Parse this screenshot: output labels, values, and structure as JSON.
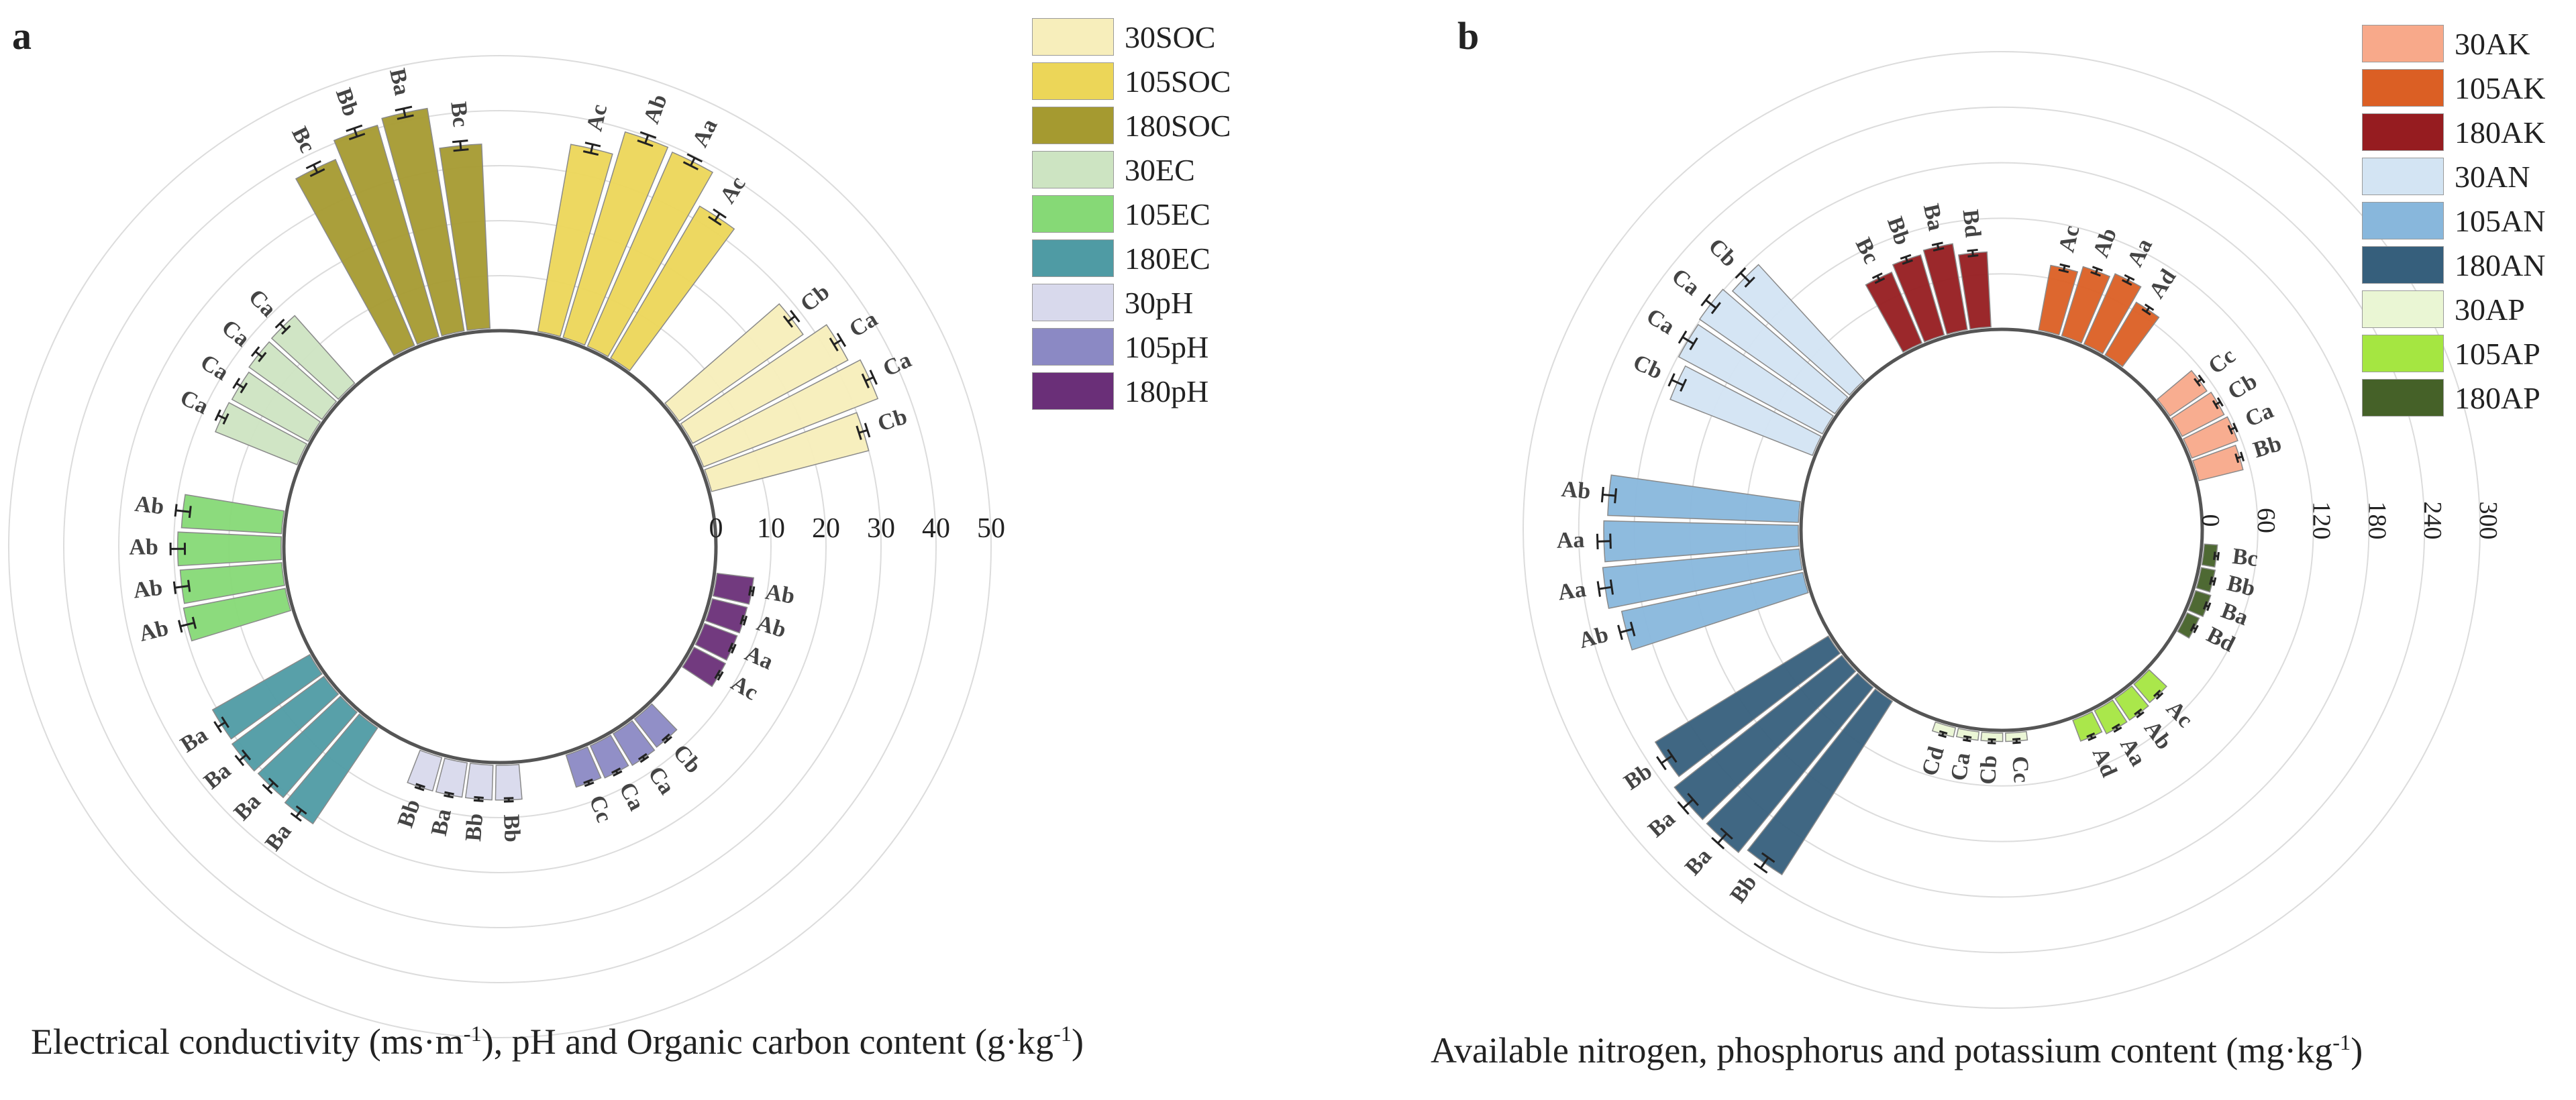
{
  "panels": [
    {
      "letter": "a",
      "caption": {
        "text": "Electrical conductivity (ms·m",
        "sup1": "-1",
        "mid": "), pH and Organic carbon content (g·kg",
        "sup2": "-1",
        "end": ")"
      }
    },
    {
      "letter": "b",
      "caption": {
        "text": "Available nitrogen, phosphorus and potassium content (mg·kg",
        "sup1": "-1",
        "end": ")"
      }
    }
  ],
  "colors": {
    "30SOC": "#f7eebb",
    "105SOC": "#ecd658",
    "180SOC": "#a59a30",
    "30EC": "#cde4c2",
    "105EC": "#86d976",
    "180EC": "#4f9ba4",
    "30pH": "#d8d9ec",
    "105pH": "#8b89c4",
    "180pH": "#6a2f78",
    "30AK": "#f8a98a",
    "105AK": "#db5f24",
    "180AK": "#961c20",
    "30AN": "#d3e4f3",
    "105AN": "#88b7dc",
    "180AN": "#365f7c",
    "30AP": "#eaf6d4",
    "105AP": "#a5e641",
    "180AP": "#456128"
  },
  "chart_data": [
    {
      "type": "radial-bar",
      "panel": "a",
      "title": "",
      "axis_label": "Electrical conductivity (ms·m-1), pH and Organic carbon content (g·kg-1)",
      "rlim": [
        0,
        50
      ],
      "ticks": [
        0,
        10,
        20,
        30,
        40,
        50
      ],
      "grid": true,
      "legend": [
        "30SOC",
        "105SOC",
        "180SOC",
        "30EC",
        "105EC",
        "180EC",
        "30pH",
        "105pH",
        "180pH"
      ],
      "groups": [
        {
          "series": "180pH",
          "values": [
            7.2,
            7.0,
            6.8,
            6.9
          ],
          "errors": [
            0.3,
            0.3,
            0.3,
            0.3
          ],
          "labels": [
            "Ab",
            "Ab",
            "Aa",
            "Ac"
          ]
        },
        {
          "series": "105pH",
          "values": [
            7.0,
            7.2,
            6.9,
            6.6
          ],
          "errors": [
            0.3,
            0.3,
            0.3,
            0.3
          ],
          "labels": [
            "Cb",
            "Ca",
            "Ca",
            "Cc"
          ]
        },
        {
          "series": "30pH",
          "values": [
            6.8,
            6.8,
            6.8,
            6.8
          ],
          "errors": [
            0.3,
            0.3,
            0.3,
            0.3
          ],
          "labels": [
            "Bb",
            "Bb",
            "Ba",
            "Bb"
          ]
        },
        {
          "series": "180EC",
          "values": [
            21.5,
            21.0,
            21.2,
            20.8
          ],
          "errors": [
            0.8,
            0.8,
            0.8,
            0.8
          ],
          "labels": [
            "Ba",
            "Ba",
            "Ba",
            "Ba"
          ]
        },
        {
          "series": "105EC",
          "values": [
            19.3,
            19.0,
            19.3,
            18.7
          ],
          "errors": [
            1.3,
            1.3,
            1.3,
            1.3
          ],
          "labels": [
            "Ab",
            "Ab",
            "Ab",
            "Ab"
          ]
        },
        {
          "series": "30EC",
          "values": [
            16.5,
            16.3,
            16.8,
            16.9
          ],
          "errors": [
            0.8,
            0.8,
            0.8,
            0.8
          ],
          "labels": [
            "Ca",
            "Ca",
            "Ca",
            "Ca"
          ]
        },
        {
          "series": "180SOC",
          "values": [
            37.2,
            40.5,
            41.5,
            34.0
          ],
          "errors": [
            0.8,
            0.8,
            0.8,
            0.8
          ],
          "labels": [
            "Bc",
            "Bb",
            "Ba",
            "Bc"
          ]
        },
        {
          "series": "105SOC",
          "values": [
            35.0,
            39.5,
            39.0,
            32.5
          ],
          "errors": [
            0.8,
            0.8,
            0.8,
            0.8
          ],
          "labels": [
            "Ac",
            "Ab",
            "Aa",
            "Ac"
          ]
        },
        {
          "series": "30SOC",
          "values": [
            28.0,
            32.5,
            34.5,
            30.0
          ],
          "errors": [
            0.8,
            0.8,
            0.8,
            0.8
          ],
          "labels": [
            "Cb",
            "Ca",
            "Ca",
            "Cb"
          ]
        }
      ]
    },
    {
      "type": "radial-bar",
      "panel": "b",
      "title": "",
      "axis_label": "Available nitrogen, phosphorus and potassium content (mg·kg-1)",
      "rlim": [
        0,
        300
      ],
      "ticks": [
        0,
        60,
        120,
        180,
        240,
        300
      ],
      "grid": true,
      "legend": [
        "30AK",
        "105AK",
        "180AK",
        "30AN",
        "105AN",
        "180AN",
        "30AP",
        "105AP",
        "180AP"
      ],
      "groups": [
        {
          "series": "180AP",
          "values": [
            17,
            18,
            20,
            17
          ],
          "errors": [
            2,
            2,
            2,
            2
          ],
          "labels": [
            "Bc",
            "Bb",
            "Ba",
            "Bd"
          ]
        },
        {
          "series": "105AP",
          "values": [
            29,
            31,
            31,
            27
          ],
          "errors": [
            2,
            2,
            2,
            2
          ],
          "labels": [
            "Ac",
            "Ab",
            "Aa",
            "Ad"
          ]
        },
        {
          "series": "30AP",
          "values": [
            12,
            12,
            12,
            13
          ],
          "errors": [
            2,
            2,
            2,
            2
          ],
          "labels": [
            "Cc",
            "Cb",
            "Ca",
            "Cd"
          ]
        },
        {
          "series": "180AN",
          "values": [
            225,
            233,
            233,
            222
          ],
          "errors": [
            7,
            7,
            7,
            7
          ],
          "labels": [
            "Bb",
            "Ba",
            "Ba",
            "Bb"
          ]
        },
        {
          "series": "105AN",
          "values": [
            203,
            216,
            213,
            209
          ],
          "errors": [
            7,
            7,
            7,
            7
          ],
          "labels": [
            "Ab",
            "Aa",
            "Aa",
            "Ab"
          ]
        },
        {
          "series": "30AN",
          "values": [
            168,
            179,
            181,
            172
          ],
          "errors": [
            7,
            7,
            7,
            7
          ],
          "labels": [
            "Cb",
            "Ca",
            "Ca",
            "Cb"
          ]
        },
        {
          "series": "180AK",
          "values": [
            86,
            93,
            97,
            84
          ],
          "errors": [
            3,
            3,
            3,
            3
          ],
          "labels": [
            "Bc",
            "Bb",
            "Ba",
            "Bd"
          ]
        },
        {
          "series": "105AK",
          "values": [
            74,
            81,
            86,
            69
          ],
          "errors": [
            3,
            3,
            3,
            3
          ],
          "labels": [
            "Ac",
            "Ab",
            "Aa",
            "Ad"
          ]
        },
        {
          "series": "30AK",
          "values": [
            51,
            54,
            56,
            52
          ],
          "errors": [
            3,
            3,
            3,
            3
          ],
          "labels": [
            "Cc",
            "Cb",
            "Ca",
            "Bb"
          ]
        }
      ]
    }
  ]
}
